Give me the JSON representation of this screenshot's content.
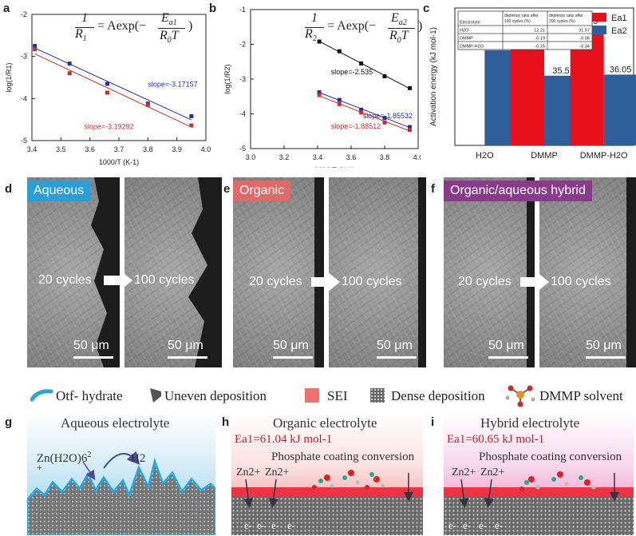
{
  "panels": {
    "a": {
      "label": "a",
      "formula_num": "1",
      "formula_den": "R",
      "formula_den_sub": "1",
      "formula_rhs": "= Aexp(−",
      "formula_e": "E",
      "formula_e_sub": "a1",
      "formula_r": "R",
      "formula_r_sub": "0",
      "formula_t": "T",
      "formula_close": ")"
    },
    "b": {
      "label": "b",
      "formula_num": "1",
      "formula_den": "R",
      "formula_den_sub": "2",
      "formula_rhs": "= Aexp(−",
      "formula_e": "E",
      "formula_e_sub": "a2",
      "formula_r": "R",
      "formula_r_sub": "0",
      "formula_t": "T",
      "formula_close": ")"
    },
    "c": {
      "label": "c"
    },
    "d": {
      "label": "d",
      "tag": "Aqueous",
      "tag_color": "#2a9fd6",
      "cycles_before": "20 cycles",
      "cycles_after": "100 cycles",
      "scale_left": "50 μm",
      "scale_right": "50 μm"
    },
    "e": {
      "label": "e",
      "tag": "Organic",
      "tag_color": "#e06a6a",
      "cycles_before": "20 cycles",
      "cycles_after": "100 cycles",
      "scale_left": "50 μm",
      "scale_right": "50 μm"
    },
    "f": {
      "label": "f",
      "tag": "Organic/aqueous hybrid",
      "tag_color": "#8a3a8a",
      "cycles_before": "20 cycles",
      "cycles_after": "100 cycles",
      "scale_left": "50 μm",
      "scale_right": "50 μm"
    },
    "g": {
      "label": "g",
      "title": "Aqueous electrolyte",
      "ion": "Zn(H2O)6",
      "ion_charge": "2",
      "plus": "+",
      "h2": "H2"
    },
    "h": {
      "label": "h",
      "title": "Organic  electrolyte",
      "ea": "Ea1=61.04 kJ mol-1",
      "coating": "Phosphate coating conversion",
      "zn1": "Zn2+",
      "zn2": "Zn2+",
      "electrons": [
        "e-",
        "e-",
        "e-",
        "e-"
      ]
    },
    "i": {
      "label": "i",
      "title": "Hybrid electrolyte",
      "ea": "Ea1=60.65 kJ mol-1",
      "coating": "Phosphate coating conversion",
      "zn1": "Zn2+",
      "zn2": "Zn2+",
      "electrons": [
        "e-",
        "e-",
        "e-",
        "e-"
      ]
    }
  },
  "legend": {
    "otf": "Otf- hydrate",
    "uneven": "Uneven deposition",
    "sei": "SEI",
    "dense": "Dense deposition",
    "dmmp": "DMMP solvent"
  },
  "chart_data": [
    {
      "type": "scatter",
      "title": "",
      "xlabel": "1000/T (K-1)",
      "ylabel": "log(1/R1)",
      "xlim": [
        3.4,
        4.0
      ],
      "ylim": [
        -5,
        -2
      ],
      "xticks": [
        "3.4",
        "3.5",
        "3.6",
        "3.7",
        "3.8",
        "3.9",
        "4.0"
      ],
      "yticks": [
        "-2",
        "-3",
        "-4",
        "-5"
      ],
      "series": [
        {
          "name": "slope=-3.17157",
          "color": "#2a2aa8",
          "x": [
            3.41,
            3.53,
            3.66,
            3.8,
            3.95
          ],
          "y": [
            -2.75,
            -3.17,
            -3.65,
            -4.12,
            -4.42
          ]
        },
        {
          "name": "slope=-3.19292",
          "color": "#c8302e",
          "x": [
            3.41,
            3.53,
            3.66,
            3.8,
            3.95
          ],
          "y": [
            -2.83,
            -3.4,
            -3.86,
            -4.15,
            -4.64
          ]
        }
      ]
    },
    {
      "type": "scatter",
      "title": "",
      "xlabel": "1000/T (K-1)",
      "ylabel": "log(1/R2)",
      "xlim": [
        3.0,
        4.0
      ],
      "ylim": [
        -5,
        -1
      ],
      "xticks": [
        "3.0",
        "3.2",
        "3.4",
        "3.6",
        "3.8",
        "4.0"
      ],
      "yticks": [
        "-1",
        "-2",
        "-3",
        "-4",
        "-5"
      ],
      "series": [
        {
          "name": "slope=-2.535",
          "color": "#111111",
          "x": [
            3.41,
            3.53,
            3.66,
            3.8,
            3.95
          ],
          "y": [
            -1.92,
            -2.2,
            -2.55,
            -2.92,
            -3.26
          ]
        },
        {
          "name": "slope=-1.85532",
          "color": "#2a2aa8",
          "x": [
            3.41,
            3.53,
            3.66,
            3.8,
            3.95
          ],
          "y": [
            -3.38,
            -3.6,
            -3.88,
            -4.12,
            -4.38
          ]
        },
        {
          "name": "slope=-1.88512",
          "color": "#c8302e",
          "x": [
            3.41,
            3.53,
            3.66,
            3.8,
            3.95
          ],
          "y": [
            -3.46,
            -3.72,
            -3.96,
            -4.25,
            -4.46
          ]
        }
      ]
    },
    {
      "type": "bar",
      "title": "",
      "xlabel": "",
      "ylabel": "Activation energy (kJ mol-1)",
      "ylim": [
        0,
        70
      ],
      "categories": [
        "H2O",
        "DMMP",
        "DMMP-H2O"
      ],
      "series": [
        {
          "name": "Ea1",
          "color": "#e8101a",
          "values": [
            null,
            61.04,
            60.65
          ]
        },
        {
          "name": "Ea2",
          "color": "#2f5f9a",
          "values": [
            48.49,
            35.5,
            36.05
          ]
        }
      ],
      "value_labels": {
        "Ea1": [
          "",
          "61.04",
          "60.65"
        ],
        "Ea2": [
          "48.49",
          "35.5",
          "36.05"
        ]
      },
      "inset_table": {
        "headers": [
          "Electrolyte",
          "depletion ratio after 100 cycles (%)",
          "depletion ratio after 200 cycles (%)"
        ],
        "rows": [
          [
            "H2O",
            "12.21",
            "31.57"
          ],
          [
            "DMMP",
            "-0.19",
            "-0.06"
          ],
          [
            "DMMP-H2O",
            "-0.15",
            "-0.34"
          ]
        ]
      }
    }
  ]
}
